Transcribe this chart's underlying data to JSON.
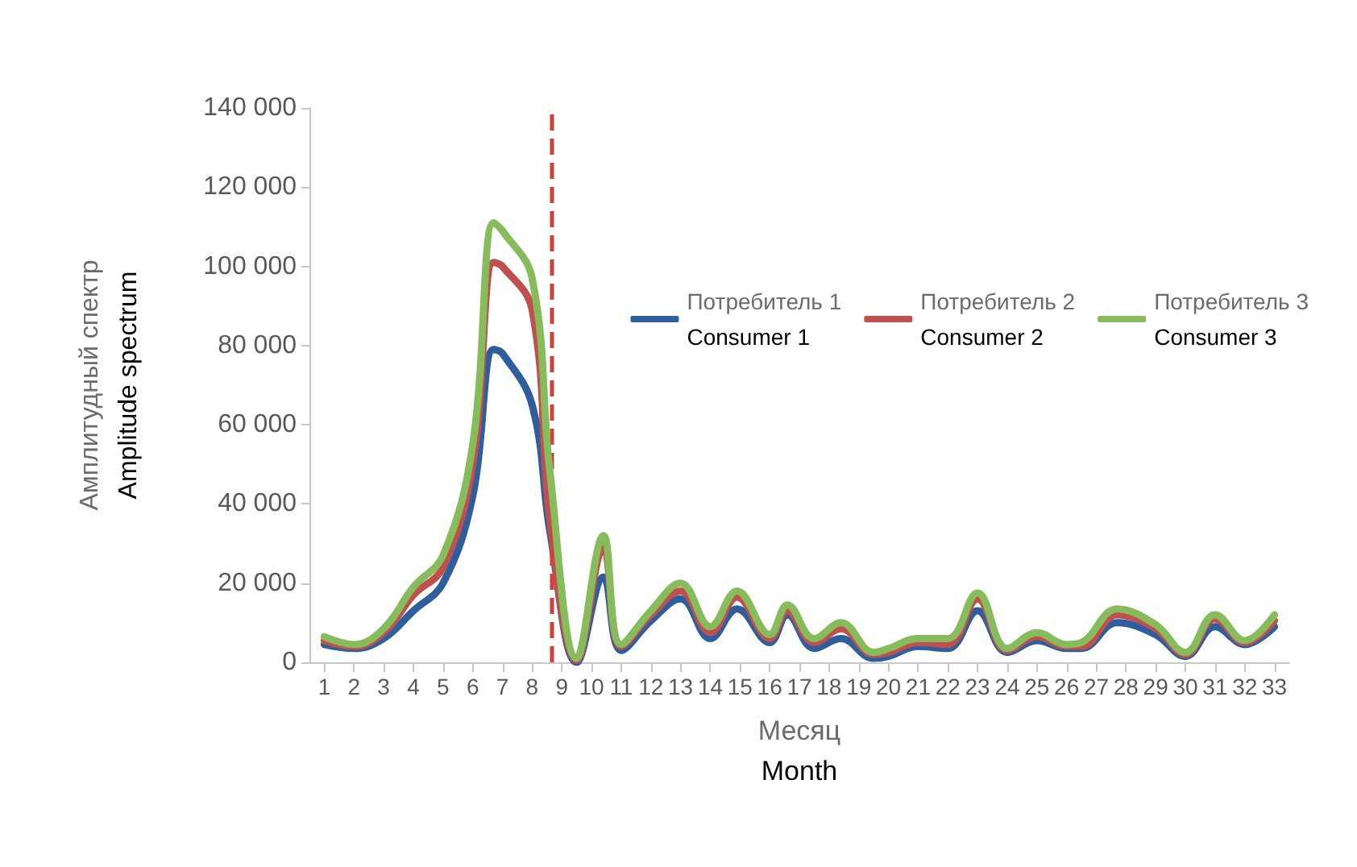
{
  "chart_data": {
    "type": "line",
    "xlabel": "Месяц\nMonth",
    "ylabel": "Амплитудный спектр\nAmplitude spectrum",
    "x": [
      1,
      2,
      3,
      4,
      5,
      6,
      6.7,
      7,
      8,
      8.6,
      9.5,
      10.4,
      11,
      12,
      13,
      14,
      14.9,
      16,
      16.6,
      17.5,
      18.4,
      19.5,
      20,
      21,
      22,
      23,
      24,
      25,
      26,
      26.5,
      27.7,
      29,
      30,
      31,
      32,
      33
    ],
    "series": [
      {
        "name": "Потребитель 1\nConsumer 1",
        "color": "#2e5e9e",
        "values": [
          4500,
          3500,
          6000,
          13000,
          20000,
          42000,
          79000,
          78000,
          65000,
          33000,
          0,
          21500,
          3000,
          10500,
          16000,
          6000,
          13500,
          5000,
          12000,
          3500,
          6000,
          1000,
          1500,
          4000,
          3500,
          13000,
          2500,
          5500,
          3500,
          3500,
          10000,
          7000,
          1500,
          9000,
          4500,
          9000
        ]
      },
      {
        "name": "Потребитель 2\nConsumer 2",
        "color": "#c0504d",
        "values": [
          5500,
          4000,
          7500,
          17000,
          24000,
          50000,
          101000,
          100000,
          89000,
          36000,
          500,
          29000,
          4000,
          12000,
          18000,
          7500,
          16500,
          6000,
          13000,
          5000,
          8500,
          2000,
          2500,
          5000,
          4500,
          16000,
          3000,
          6500,
          4000,
          4000,
          12000,
          8500,
          2000,
          11000,
          5000,
          10500
        ]
      },
      {
        "name": "Потребитель 3\nConsumer 3",
        "color": "#86bc5c",
        "values": [
          6500,
          4500,
          8500,
          19000,
          27000,
          55000,
          111000,
          109000,
          97000,
          48000,
          1000,
          32000,
          4500,
          13000,
          20000,
          9000,
          18000,
          7000,
          14500,
          6000,
          10000,
          2500,
          3500,
          6000,
          6000,
          17500,
          3500,
          7500,
          4500,
          5000,
          13500,
          9500,
          2500,
          12000,
          5500,
          12000
        ]
      }
    ],
    "xlim": [
      0.5,
      33.5
    ],
    "xticks": [
      1,
      2,
      3,
      4,
      5,
      6,
      7,
      8,
      9,
      10,
      11,
      12,
      13,
      14,
      15,
      16,
      17,
      18,
      19,
      20,
      21,
      22,
      23,
      24,
      25,
      26,
      27,
      28,
      29,
      30,
      31,
      32,
      33
    ],
    "ylim": [
      0,
      140000
    ],
    "yticks": [
      {
        "value": 0,
        "label": "0"
      },
      {
        "value": 20000,
        "label": "20 000"
      },
      {
        "value": 40000,
        "label": "40 000"
      },
      {
        "value": 60000,
        "label": "60 000"
      },
      {
        "value": 80000,
        "label": "80 000"
      },
      {
        "value": 100000,
        "label": "100 000"
      },
      {
        "value": 120000,
        "label": "120 000"
      },
      {
        "value": 140000,
        "label": "140 000"
      }
    ],
    "ref_lines": [
      {
        "axis": "x",
        "value": 8.64,
        "color": "#d0413a",
        "line_style": "dashed"
      }
    ],
    "legend": "top right",
    "grid": false,
    "marker": "none",
    "line_style": "solid"
  }
}
